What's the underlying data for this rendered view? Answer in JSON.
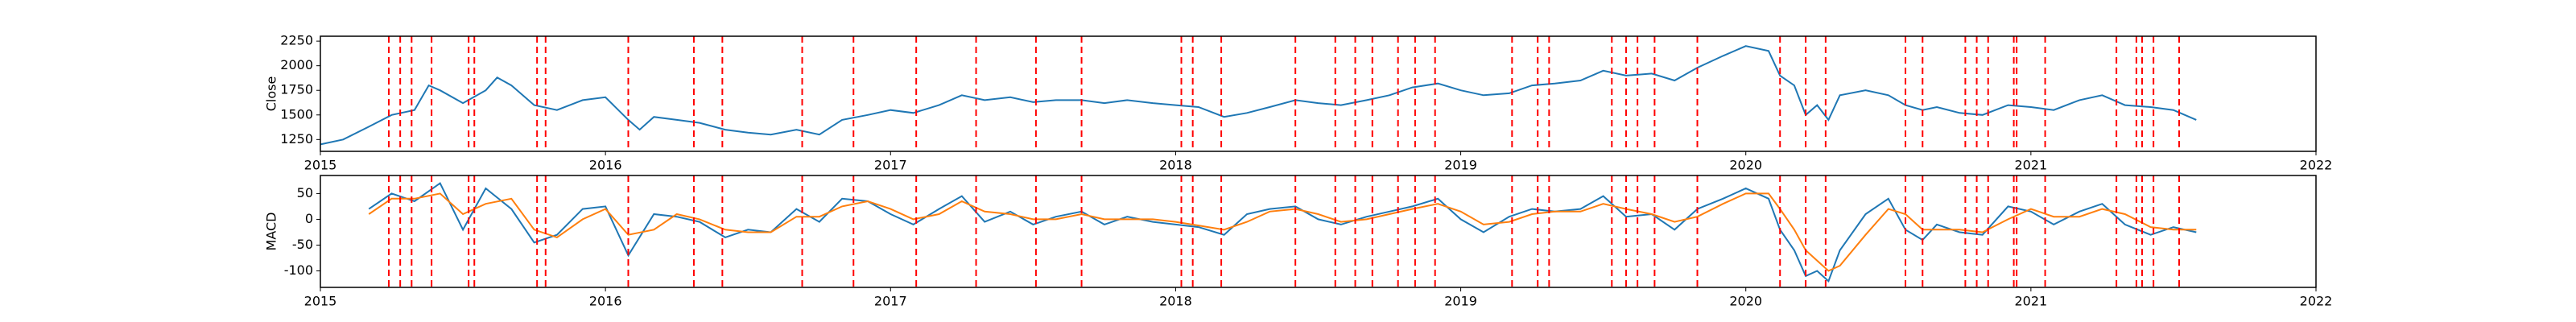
{
  "chart_data": [
    {
      "type": "line",
      "ylabel": "Close",
      "x": [
        2015.0,
        2015.08,
        2015.17,
        2015.25,
        2015.33,
        2015.38,
        2015.42,
        2015.5,
        2015.58,
        2015.62,
        2015.67,
        2015.75,
        2015.83,
        2015.92,
        2016.0,
        2016.08,
        2016.12,
        2016.17,
        2016.25,
        2016.33,
        2016.42,
        2016.5,
        2016.58,
        2016.67,
        2016.75,
        2016.83,
        2016.92,
        2017.0,
        2017.08,
        2017.17,
        2017.25,
        2017.33,
        2017.42,
        2017.5,
        2017.58,
        2017.67,
        2017.75,
        2017.83,
        2017.92,
        2018.0,
        2018.08,
        2018.17,
        2018.25,
        2018.33,
        2018.42,
        2018.5,
        2018.58,
        2018.67,
        2018.75,
        2018.83,
        2018.92,
        2019.0,
        2019.08,
        2019.17,
        2019.25,
        2019.33,
        2019.42,
        2019.5,
        2019.58,
        2019.67,
        2019.75,
        2019.83,
        2019.92,
        2020.0,
        2020.08,
        2020.12,
        2020.17,
        2020.21,
        2020.25,
        2020.29,
        2020.33,
        2020.42,
        2020.5,
        2020.56,
        2020.62,
        2020.67,
        2020.75,
        2020.83,
        2020.92,
        2021.0,
        2021.08,
        2021.17,
        2021.25,
        2021.33,
        2021.42,
        2021.5,
        2021.58
      ],
      "series": [
        {
          "color": "#1f77b4",
          "values": [
            1200,
            1250,
            1380,
            1500,
            1550,
            1800,
            1750,
            1620,
            1750,
            1880,
            1800,
            1600,
            1550,
            1650,
            1680,
            1450,
            1350,
            1480,
            1450,
            1420,
            1350,
            1320,
            1300,
            1350,
            1300,
            1450,
            1500,
            1550,
            1520,
            1600,
            1700,
            1650,
            1680,
            1630,
            1650,
            1650,
            1620,
            1650,
            1620,
            1600,
            1580,
            1480,
            1520,
            1580,
            1650,
            1620,
            1600,
            1650,
            1700,
            1780,
            1820,
            1750,
            1700,
            1720,
            1800,
            1820,
            1850,
            1950,
            1900,
            1920,
            1850,
            1980,
            2100,
            2200,
            2150,
            1900,
            1800,
            1500,
            1600,
            1450,
            1700,
            1750,
            1700,
            1600,
            1550,
            1580,
            1520,
            1500,
            1600,
            1580,
            1550,
            1650,
            1700,
            1600,
            1580,
            1550,
            1450
          ]
        }
      ],
      "xlim": [
        2015,
        2022
      ],
      "xticks": [
        2015,
        2016,
        2017,
        2018,
        2019,
        2020,
        2021,
        2022
      ],
      "ylim": [
        1130,
        2300
      ],
      "yticks": [
        1250,
        1500,
        1750,
        2000,
        2250
      ],
      "vlines": [
        2015.24,
        2015.28,
        2015.32,
        2015.39,
        2015.52,
        2015.54,
        2015.76,
        2015.79,
        2016.08,
        2016.31,
        2016.41,
        2016.69,
        2016.87,
        2017.09,
        2017.3,
        2017.51,
        2017.67,
        2018.02,
        2018.06,
        2018.16,
        2018.42,
        2018.56,
        2018.63,
        2018.69,
        2018.78,
        2018.84,
        2018.91,
        2019.18,
        2019.27,
        2019.31,
        2019.53,
        2019.58,
        2019.62,
        2019.68,
        2019.83,
        2020.12,
        2020.21,
        2020.28,
        2020.56,
        2020.62,
        2020.77,
        2020.81,
        2020.85,
        2020.94,
        2020.95,
        2021.05,
        2021.3,
        2021.37,
        2021.39,
        2021.43,
        2021.52
      ],
      "vline_color": "#ff0000"
    },
    {
      "type": "line",
      "ylabel": "MACD",
      "x": [
        2015.17,
        2015.25,
        2015.33,
        2015.42,
        2015.5,
        2015.58,
        2015.67,
        2015.75,
        2015.83,
        2015.92,
        2016.0,
        2016.08,
        2016.17,
        2016.25,
        2016.33,
        2016.42,
        2016.5,
        2016.58,
        2016.67,
        2016.75,
        2016.83,
        2016.92,
        2017.0,
        2017.08,
        2017.17,
        2017.25,
        2017.33,
        2017.42,
        2017.5,
        2017.58,
        2017.67,
        2017.75,
        2017.83,
        2017.92,
        2018.0,
        2018.08,
        2018.17,
        2018.25,
        2018.33,
        2018.42,
        2018.5,
        2018.58,
        2018.67,
        2018.75,
        2018.83,
        2018.92,
        2019.0,
        2019.08,
        2019.17,
        2019.25,
        2019.33,
        2019.42,
        2019.5,
        2019.58,
        2019.67,
        2019.75,
        2019.83,
        2019.92,
        2020.0,
        2020.08,
        2020.12,
        2020.17,
        2020.21,
        2020.25,
        2020.29,
        2020.33,
        2020.42,
        2020.5,
        2020.56,
        2020.62,
        2020.67,
        2020.75,
        2020.83,
        2020.92,
        2021.0,
        2021.08,
        2021.17,
        2021.25,
        2021.33,
        2021.42,
        2021.5,
        2021.58
      ],
      "series": [
        {
          "color": "#1f77b4",
          "values": [
            20,
            50,
            35,
            70,
            -20,
            60,
            20,
            -45,
            -30,
            20,
            25,
            -70,
            10,
            5,
            -5,
            -35,
            -20,
            -25,
            20,
            -5,
            40,
            35,
            10,
            -10,
            20,
            45,
            -5,
            15,
            -10,
            5,
            15,
            -10,
            5,
            -5,
            -10,
            -15,
            -30,
            10,
            20,
            25,
            0,
            -10,
            5,
            15,
            25,
            40,
            0,
            -25,
            5,
            20,
            15,
            20,
            45,
            5,
            10,
            -20,
            20,
            40,
            60,
            40,
            -20,
            -60,
            -110,
            -100,
            -120,
            -60,
            10,
            40,
            -20,
            -40,
            -10,
            -25,
            -30,
            25,
            15,
            -10,
            15,
            30,
            -10,
            -30,
            -15,
            -25
          ]
        },
        {
          "color": "#ff7f0e",
          "values": [
            10,
            40,
            40,
            50,
            10,
            30,
            40,
            -20,
            -35,
            0,
            20,
            -30,
            -20,
            10,
            0,
            -20,
            -25,
            -25,
            5,
            5,
            25,
            35,
            20,
            0,
            10,
            35,
            15,
            10,
            0,
            0,
            10,
            0,
            0,
            0,
            -5,
            -12,
            -20,
            -5,
            15,
            20,
            10,
            -5,
            0,
            10,
            20,
            30,
            15,
            -10,
            -5,
            10,
            15,
            15,
            30,
            20,
            10,
            -5,
            5,
            30,
            50,
            50,
            20,
            -20,
            -60,
            -80,
            -100,
            -90,
            -30,
            20,
            10,
            -20,
            -20,
            -20,
            -25,
            0,
            20,
            5,
            5,
            20,
            10,
            -15,
            -20,
            -20
          ]
        }
      ],
      "xlim": [
        2015,
        2022
      ],
      "xticks": [
        2015,
        2016,
        2017,
        2018,
        2019,
        2020,
        2021,
        2022
      ],
      "ylim": [
        -132,
        85
      ],
      "yticks": [
        -100,
        -50,
        0,
        50
      ],
      "vlines": [
        2015.24,
        2015.28,
        2015.32,
        2015.39,
        2015.52,
        2015.54,
        2015.76,
        2015.79,
        2016.08,
        2016.31,
        2016.41,
        2016.69,
        2016.87,
        2017.09,
        2017.3,
        2017.51,
        2017.67,
        2018.02,
        2018.06,
        2018.16,
        2018.42,
        2018.56,
        2018.63,
        2018.69,
        2018.78,
        2018.84,
        2018.91,
        2019.18,
        2019.27,
        2019.31,
        2019.53,
        2019.58,
        2019.62,
        2019.68,
        2019.83,
        2020.12,
        2020.21,
        2020.28,
        2020.56,
        2020.62,
        2020.77,
        2020.81,
        2020.85,
        2020.94,
        2020.95,
        2021.05,
        2021.3,
        2021.37,
        2021.39,
        2021.43,
        2021.52
      ],
      "vline_color": "#ff0000"
    }
  ]
}
